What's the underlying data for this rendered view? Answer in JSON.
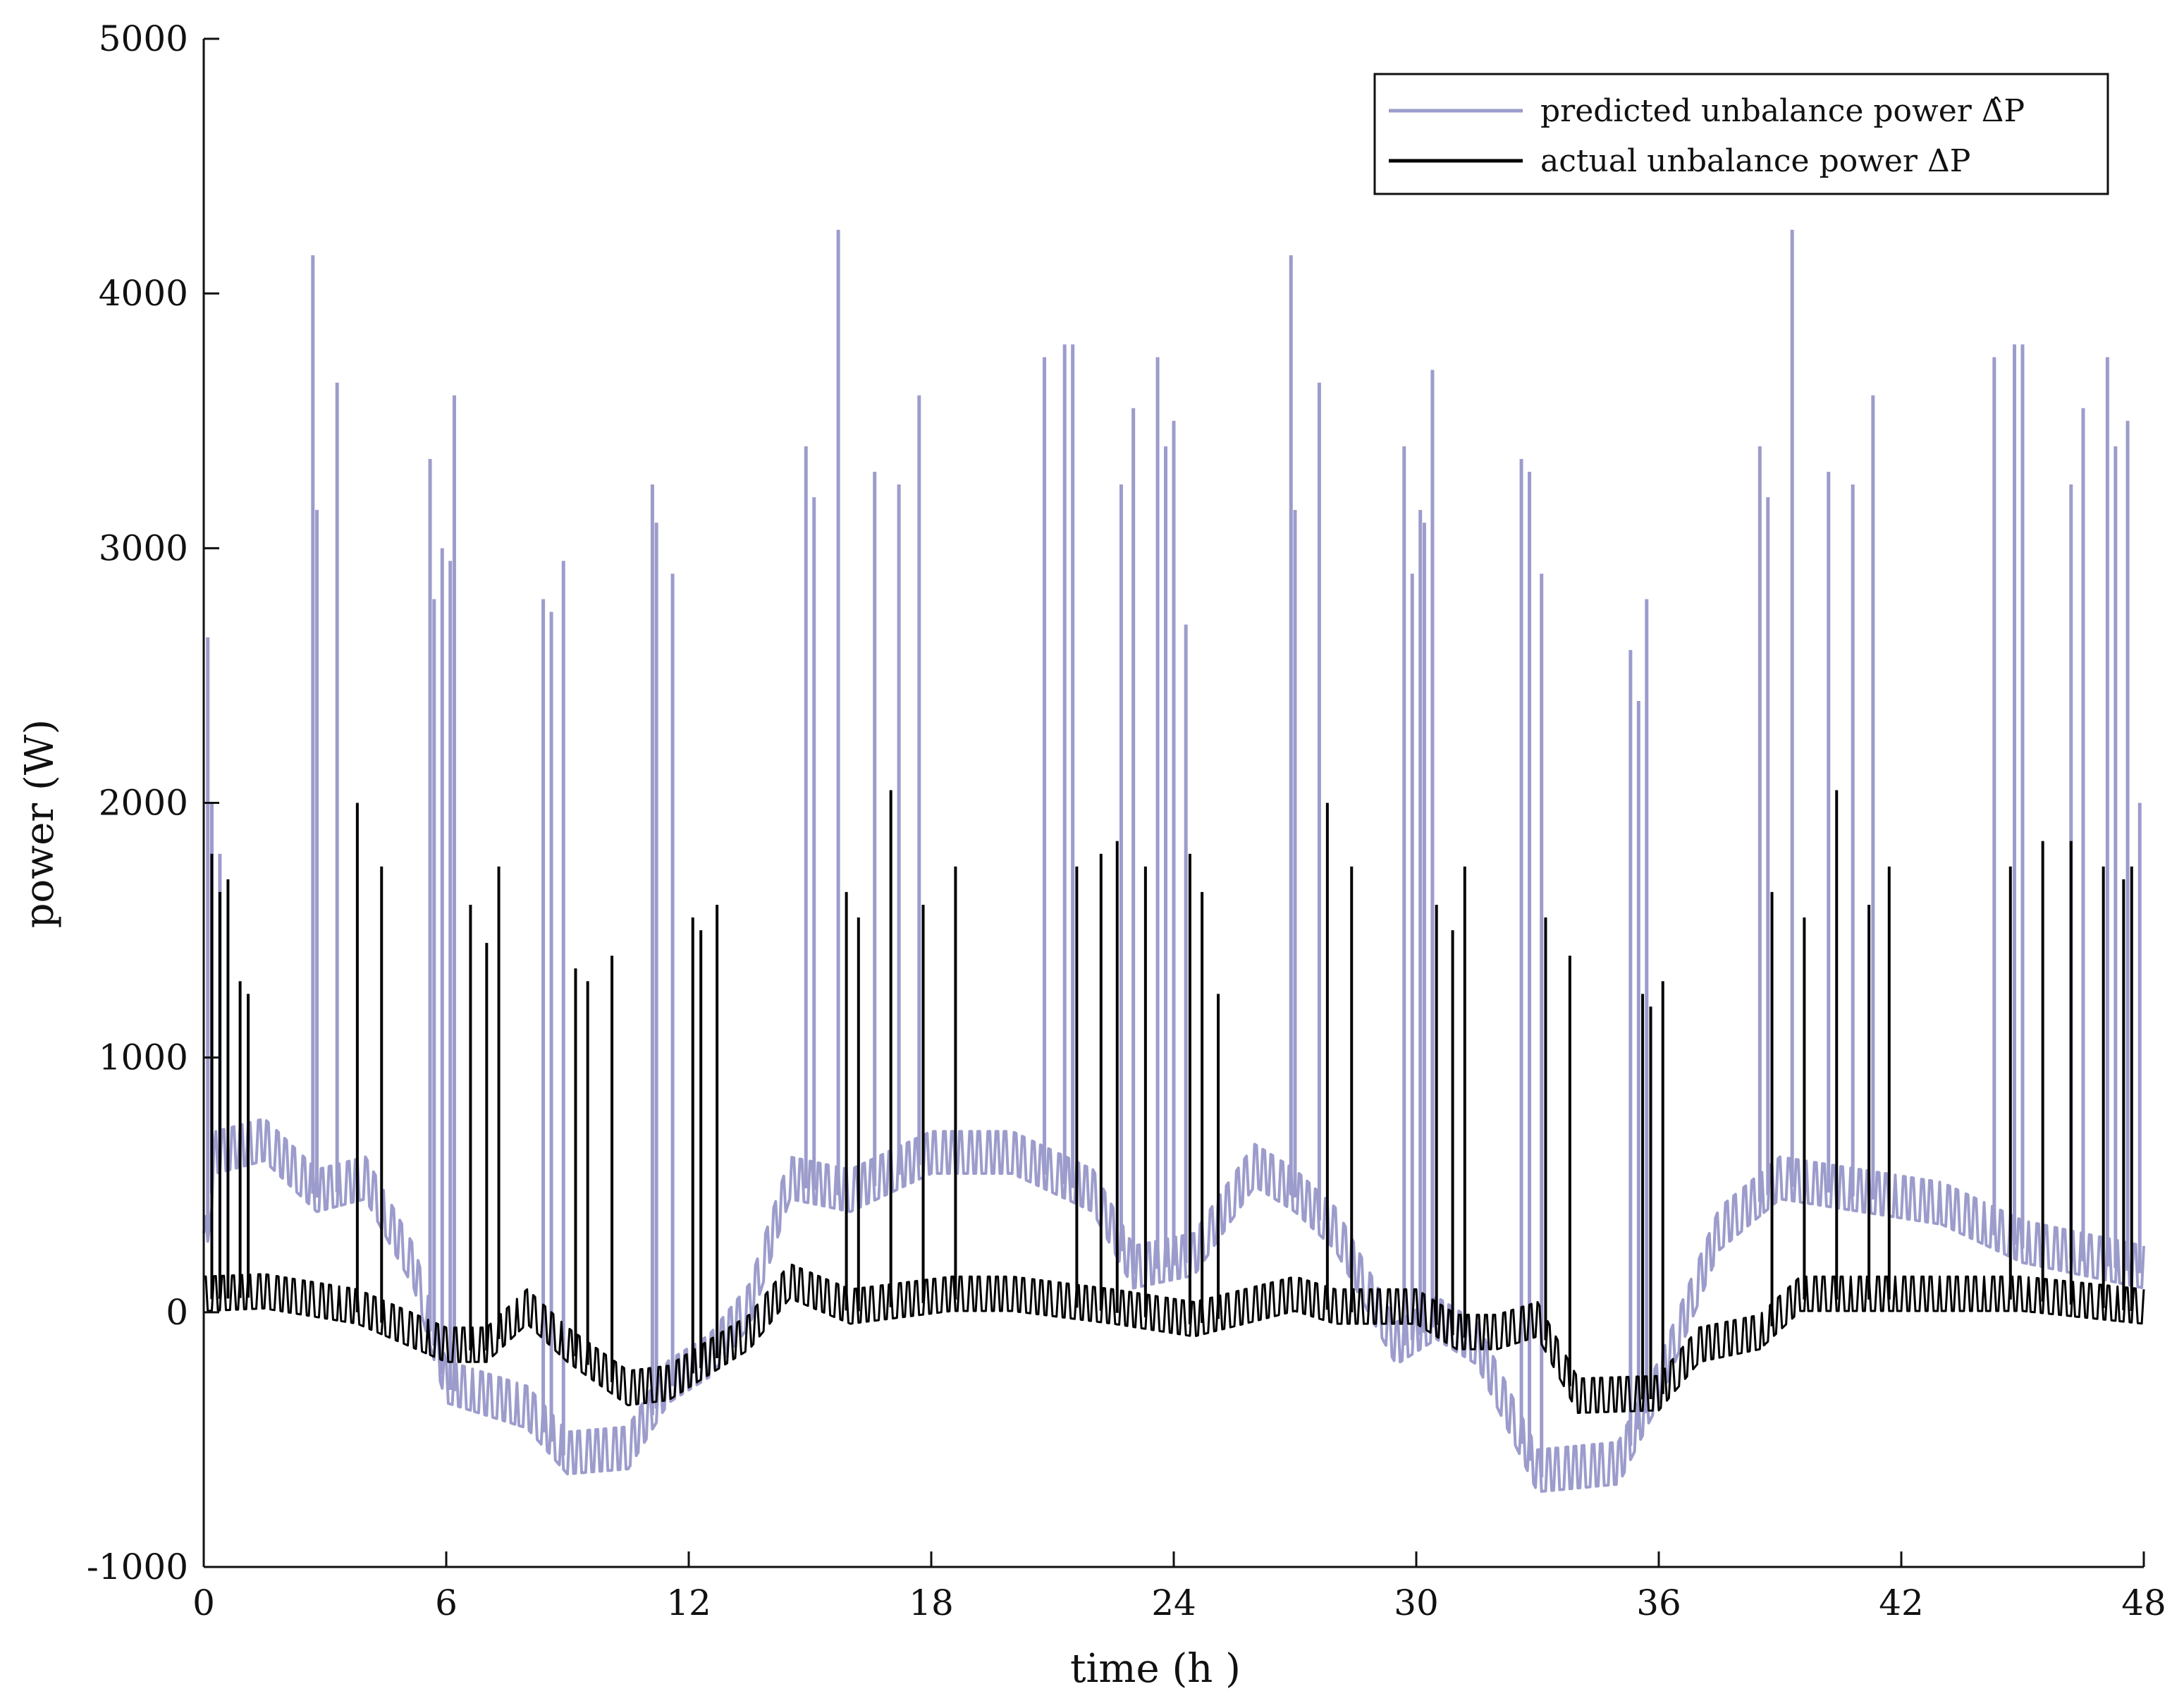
{
  "chart_data": {
    "type": "line",
    "title": "",
    "xlabel": "time (h )",
    "ylabel": "power (W)",
    "xlim": [
      0,
      48
    ],
    "ylim": [
      -1000,
      5000
    ],
    "xticks": [
      0,
      6,
      12,
      18,
      24,
      30,
      36,
      42,
      48
    ],
    "xtick_labels": [
      "0",
      "6",
      "12",
      "18",
      "24",
      "30",
      "36",
      "42",
      "48"
    ],
    "yticks": [
      -1000,
      0,
      1000,
      2000,
      3000,
      4000,
      5000
    ],
    "ytick_labels": [
      "-1000",
      "0",
      "1000",
      "2000",
      "3000",
      "4000",
      "5000"
    ],
    "grid": false,
    "legend_position": "top-right",
    "series": [
      {
        "name": "predicted unbalance power Δ̂P",
        "color": "#9c9ccc",
        "baseline": [
          [
            0,
            200
          ],
          [
            0.3,
            600
          ],
          [
            1.5,
            650
          ],
          [
            2.8,
            450
          ],
          [
            4,
            500
          ],
          [
            5.2,
            150
          ],
          [
            6,
            -300
          ],
          [
            7,
            -350
          ],
          [
            8,
            -400
          ],
          [
            9,
            -580
          ],
          [
            10.5,
            -560
          ],
          [
            11.5,
            -300
          ],
          [
            12.5,
            -200
          ],
          [
            13.5,
            0
          ],
          [
            14.5,
            500
          ],
          [
            16,
            450
          ],
          [
            18,
            600
          ],
          [
            20,
            600
          ],
          [
            22,
            450
          ],
          [
            23,
            150
          ],
          [
            24.5,
            200
          ],
          [
            26,
            550
          ],
          [
            27,
            450
          ],
          [
            28,
            300
          ],
          [
            29.5,
            -150
          ],
          [
            30.5,
            -50
          ],
          [
            31.5,
            -150
          ],
          [
            33,
            -650
          ],
          [
            35,
            -620
          ],
          [
            36,
            -300
          ],
          [
            37.5,
            300
          ],
          [
            39,
            500
          ],
          [
            41,
            450
          ],
          [
            43,
            400
          ],
          [
            45,
            250
          ],
          [
            46.5,
            200
          ],
          [
            48,
            150
          ]
        ],
        "spikes": [
          [
            0.1,
            2650
          ],
          [
            0.2,
            2000
          ],
          [
            0.4,
            1800
          ],
          [
            2.7,
            4150
          ],
          [
            2.8,
            3150
          ],
          [
            3.3,
            3650
          ],
          [
            5.6,
            3350
          ],
          [
            5.7,
            2800
          ],
          [
            5.9,
            3000
          ],
          [
            6.1,
            2950
          ],
          [
            6.2,
            3600
          ],
          [
            8.4,
            2800
          ],
          [
            8.6,
            2750
          ],
          [
            8.9,
            2950
          ],
          [
            11.1,
            3250
          ],
          [
            11.2,
            3100
          ],
          [
            11.6,
            2900
          ],
          [
            14.9,
            3400
          ],
          [
            15.1,
            3200
          ],
          [
            15.7,
            4250
          ],
          [
            16.6,
            3300
          ],
          [
            17.2,
            3250
          ],
          [
            17.7,
            3600
          ],
          [
            20.8,
            3750
          ],
          [
            21.3,
            3800
          ],
          [
            21.5,
            3800
          ],
          [
            22.7,
            3250
          ],
          [
            23,
            3550
          ],
          [
            23.6,
            3750
          ],
          [
            23.8,
            3400
          ],
          [
            24,
            3500
          ],
          [
            24.3,
            2700
          ],
          [
            26.9,
            4150
          ],
          [
            27.0,
            3150
          ],
          [
            27.6,
            3650
          ],
          [
            29.7,
            3400
          ],
          [
            29.9,
            2900
          ],
          [
            30.1,
            3150
          ],
          [
            30.2,
            3100
          ],
          [
            30.4,
            3700
          ],
          [
            32.6,
            3350
          ],
          [
            32.8,
            3300
          ],
          [
            33.1,
            2900
          ],
          [
            35.3,
            2600
          ],
          [
            35.5,
            2400
          ],
          [
            35.7,
            2800
          ],
          [
            38.5,
            3400
          ],
          [
            38.7,
            3200
          ],
          [
            39.3,
            4250
          ],
          [
            40.2,
            3300
          ],
          [
            40.8,
            3250
          ],
          [
            41.3,
            3600
          ],
          [
            44.3,
            3750
          ],
          [
            44.8,
            3800
          ],
          [
            45.0,
            3800
          ],
          [
            46.2,
            3250
          ],
          [
            46.5,
            3550
          ],
          [
            47.1,
            3750
          ],
          [
            47.3,
            3400
          ],
          [
            47.6,
            3500
          ],
          [
            47.9,
            2000
          ]
        ]
      },
      {
        "name": "actual unbalance power ΔP",
        "color": "#000000",
        "baseline": [
          [
            0,
            50
          ],
          [
            1.5,
            60
          ],
          [
            3.8,
            0
          ],
          [
            6,
            -150
          ],
          [
            7,
            -150
          ],
          [
            8,
            0
          ],
          [
            9,
            -150
          ],
          [
            10.5,
            -320
          ],
          [
            11.5,
            -300
          ],
          [
            12.5,
            -200
          ],
          [
            13.5,
            -100
          ],
          [
            14.5,
            100
          ],
          [
            16,
            0
          ],
          [
            18.5,
            50
          ],
          [
            20,
            50
          ],
          [
            22.5,
            0
          ],
          [
            24.5,
            -50
          ],
          [
            27,
            50
          ],
          [
            28,
            0
          ],
          [
            30,
            0
          ],
          [
            31,
            -100
          ],
          [
            32,
            -100
          ],
          [
            33,
            -50
          ],
          [
            34,
            -350
          ],
          [
            36,
            -340
          ],
          [
            37,
            -150
          ],
          [
            38.5,
            -100
          ],
          [
            39.5,
            50
          ],
          [
            42,
            50
          ],
          [
            45,
            50
          ],
          [
            48,
            0
          ]
        ],
        "spikes": [
          [
            0.2,
            1800
          ],
          [
            0.4,
            1650
          ],
          [
            0.6,
            1700
          ],
          [
            0.9,
            1300
          ],
          [
            1.1,
            1250
          ],
          [
            3.8,
            2000
          ],
          [
            4.4,
            1750
          ],
          [
            6.6,
            1600
          ],
          [
            7.0,
            1450
          ],
          [
            7.3,
            1750
          ],
          [
            9.2,
            1350
          ],
          [
            9.5,
            1300
          ],
          [
            10.1,
            1400
          ],
          [
            12.1,
            1550
          ],
          [
            12.3,
            1500
          ],
          [
            12.7,
            1600
          ],
          [
            15.9,
            1650
          ],
          [
            16.2,
            1550
          ],
          [
            17.0,
            2050
          ],
          [
            17.8,
            1600
          ],
          [
            18.6,
            1750
          ],
          [
            21.6,
            1750
          ],
          [
            22.2,
            1800
          ],
          [
            22.6,
            1850
          ],
          [
            23.3,
            1750
          ],
          [
            24.4,
            1800
          ],
          [
            24.7,
            1650
          ],
          [
            25.1,
            1250
          ],
          [
            27.8,
            2000
          ],
          [
            28.4,
            1750
          ],
          [
            30.5,
            1600
          ],
          [
            30.9,
            1500
          ],
          [
            31.2,
            1750
          ],
          [
            33.2,
            1550
          ],
          [
            33.8,
            1400
          ],
          [
            35.6,
            1250
          ],
          [
            35.8,
            1200
          ],
          [
            36.1,
            1300
          ],
          [
            38.8,
            1650
          ],
          [
            39.6,
            1550
          ],
          [
            40.4,
            2050
          ],
          [
            41.2,
            1600
          ],
          [
            41.7,
            1750
          ],
          [
            44.7,
            1750
          ],
          [
            45.5,
            1850
          ],
          [
            46.2,
            1850
          ],
          [
            47.0,
            1750
          ],
          [
            47.5,
            1700
          ],
          [
            47.7,
            1750
          ]
        ]
      }
    ]
  }
}
